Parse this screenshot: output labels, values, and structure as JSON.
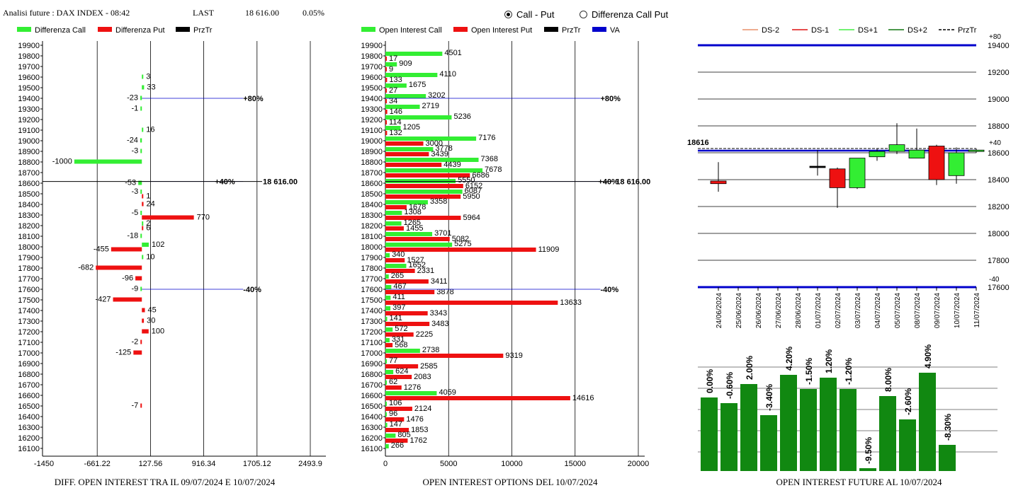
{
  "header": {
    "title": "Analisi future : DAX INDEX - 08:42",
    "last_label": "LAST",
    "last_value": "18 616.00",
    "change": "0.05%"
  },
  "mode_options": [
    {
      "label": "Call - Put",
      "selected": true
    },
    {
      "label": "Differenza Call Put",
      "selected": false
    }
  ],
  "colors": {
    "call": "#33ee33",
    "put": "#ee1111",
    "price": "#000000",
    "va": "#0000cc",
    "bar_dark": "#118811"
  },
  "chart_data": [
    {
      "type": "bar",
      "orientation": "horizontal",
      "title": "DIFF. OPEN INTEREST TRA IL 09/07/2024 E 10/07/2024",
      "legend": [
        "Differenza Call",
        "Differenza Put",
        "PrzTr"
      ],
      "x_ticks": [
        "-1450",
        "-661.22",
        "127.56",
        "916.34",
        "1705.12",
        "2493.9"
      ],
      "xlim": [
        -1450,
        2493.9
      ],
      "strikes": [
        19900,
        19800,
        19700,
        19600,
        19500,
        19400,
        19300,
        19200,
        19100,
        19000,
        18900,
        18800,
        18700,
        18600,
        18500,
        18400,
        18300,
        18200,
        18100,
        18000,
        17900,
        17800,
        17700,
        17600,
        17500,
        17400,
        17300,
        17200,
        17100,
        17000,
        16900,
        16800,
        16700,
        16600,
        16500,
        16400,
        16300,
        16200,
        16100
      ],
      "bars": [
        {
          "strike": 19600,
          "value": 3,
          "type": "call"
        },
        {
          "strike": 19500,
          "value": 33,
          "type": "call"
        },
        {
          "strike": 19400,
          "value": -23,
          "type": "call"
        },
        {
          "strike": 19300,
          "value": -1,
          "type": "call"
        },
        {
          "strike": 19100,
          "value": 16,
          "type": "call"
        },
        {
          "strike": 19000,
          "value": -24,
          "type": "call"
        },
        {
          "strike": 18900,
          "value": -3,
          "type": "call"
        },
        {
          "strike": 18800,
          "value": -1000,
          "type": "call"
        },
        {
          "strike": 18600,
          "value": -53,
          "type": "call"
        },
        {
          "strike": 18500,
          "value": -3,
          "type": "call"
        },
        {
          "strike": 18500,
          "value": 1,
          "type": "put"
        },
        {
          "strike": 18400,
          "value": 24,
          "type": "put"
        },
        {
          "strike": 18300,
          "value": -5,
          "type": "call"
        },
        {
          "strike": 18300,
          "value": 770,
          "type": "put"
        },
        {
          "strike": 18200,
          "value": 2,
          "type": "call"
        },
        {
          "strike": 18200,
          "value": 6,
          "type": "put"
        },
        {
          "strike": 18100,
          "value": -18,
          "type": "call"
        },
        {
          "strike": 18000,
          "value": 102,
          "type": "call"
        },
        {
          "strike": 18000,
          "value": -455,
          "type": "put"
        },
        {
          "strike": 17900,
          "value": 10,
          "type": "call"
        },
        {
          "strike": 17800,
          "value": -682,
          "type": "put"
        },
        {
          "strike": 17700,
          "value": -96,
          "type": "put"
        },
        {
          "strike": 17600,
          "value": -9,
          "type": "call"
        },
        {
          "strike": 17500,
          "value": -427,
          "type": "put"
        },
        {
          "strike": 17400,
          "value": 45,
          "type": "put"
        },
        {
          "strike": 17300,
          "value": 30,
          "type": "put"
        },
        {
          "strike": 17200,
          "value": 100,
          "type": "put"
        },
        {
          "strike": 17100,
          "value": -2,
          "type": "put"
        },
        {
          "strike": 17000,
          "value": -125,
          "type": "put"
        },
        {
          "strike": 16500,
          "value": -7,
          "type": "put"
        }
      ],
      "levels": [
        {
          "strike": 19400,
          "label": "+80%"
        },
        {
          "strike": 18616,
          "label": "+40%"
        },
        {
          "strike": 17600,
          "label": "-40%"
        }
      ],
      "price": {
        "value": 18616,
        "label": "18 616.00"
      }
    },
    {
      "type": "bar",
      "orientation": "horizontal",
      "title": "OPEN INTEREST OPTIONS DEL 10/07/2024",
      "legend": [
        "Open Interest Call",
        "Open Interest Put",
        "PrzTr",
        "VA"
      ],
      "x_ticks": [
        "0",
        "5000",
        "10000",
        "15000",
        "20000"
      ],
      "xlim": [
        0,
        20000
      ],
      "strikes": [
        19900,
        19800,
        19700,
        19600,
        19500,
        19400,
        19300,
        19200,
        19100,
        19000,
        18900,
        18800,
        18700,
        18600,
        18500,
        18400,
        18300,
        18200,
        18100,
        18000,
        17900,
        17800,
        17700,
        17600,
        17500,
        17400,
        17300,
        17200,
        17100,
        17000,
        16900,
        16800,
        16700,
        16600,
        16500,
        16400,
        16300,
        16200,
        16100
      ],
      "rows": [
        {
          "strike": 19800,
          "call": 4501,
          "put": 17
        },
        {
          "strike": 19700,
          "call": 909,
          "put": 9
        },
        {
          "strike": 19600,
          "call": 4110,
          "put": 133
        },
        {
          "strike": 19500,
          "call": 1675,
          "put": 27
        },
        {
          "strike": 19400,
          "call": 3202,
          "put": 34
        },
        {
          "strike": 19300,
          "call": 2719,
          "put": 146
        },
        {
          "strike": 19200,
          "call": 5236,
          "put": 114
        },
        {
          "strike": 19100,
          "call": 1205,
          "put": 132
        },
        {
          "strike": 19000,
          "call": 7176,
          "put": 3000
        },
        {
          "strike": 18900,
          "call": 3778,
          "put": 3439
        },
        {
          "strike": 18800,
          "call": 7368,
          "put": 4439
        },
        {
          "strike": 18700,
          "call": 7678,
          "put": 6686
        },
        {
          "strike": 18600,
          "call": 5550,
          "put": 6152
        },
        {
          "strike": 18500,
          "call": 6087,
          "put": 5950
        },
        {
          "strike": 18400,
          "call": 3358,
          "put": 1678
        },
        {
          "strike": 18300,
          "call": 1308,
          "put": 5964
        },
        {
          "strike": 18200,
          "call": 1265,
          "put": 1455
        },
        {
          "strike": 18100,
          "call": 3701,
          "put": 5082
        },
        {
          "strike": 18000,
          "call": 5275,
          "put": 11909
        },
        {
          "strike": 17900,
          "call": 340,
          "put": 1527
        },
        {
          "strike": 17800,
          "call": 1652,
          "put": 2331
        },
        {
          "strike": 17700,
          "call": 265,
          "put": 3411
        },
        {
          "strike": 17600,
          "call": 467,
          "put": 3878
        },
        {
          "strike": 17500,
          "call": 411,
          "put": 13633
        },
        {
          "strike": 17400,
          "call": 397,
          "put": 3343
        },
        {
          "strike": 17300,
          "call": 141,
          "put": 3483
        },
        {
          "strike": 17200,
          "call": 572,
          "put": 2225
        },
        {
          "strike": 17100,
          "call": 331,
          "put": 568
        },
        {
          "strike": 17000,
          "call": 2738,
          "put": 9319
        },
        {
          "strike": 16900,
          "call": 77,
          "put": 2585
        },
        {
          "strike": 16800,
          "call": 624,
          "put": 2083
        },
        {
          "strike": 16700,
          "call": 62,
          "put": 1276
        },
        {
          "strike": 16600,
          "call": 4059,
          "put": 14616
        },
        {
          "strike": 16500,
          "call": 106,
          "put": 2124
        },
        {
          "strike": 16400,
          "call": 96,
          "put": 1476
        },
        {
          "strike": 16300,
          "call": 147,
          "put": 1853
        },
        {
          "strike": 16200,
          "call": 805,
          "put": 1762
        },
        {
          "strike": 16100,
          "call": 266,
          "put": null
        }
      ],
      "levels": [
        {
          "strike": 19400,
          "label": "+80%"
        },
        {
          "strike": 18616,
          "label": "+40%"
        },
        {
          "strike": 17600,
          "label": "-40%"
        }
      ],
      "price": {
        "value": 18616,
        "label": "18 616.00"
      }
    },
    {
      "type": "candlestick",
      "legend": [
        "DS-2",
        "DS-1",
        "DS+1",
        "DS+2",
        "PrzTr"
      ],
      "y_ticks": [
        "19400",
        "19200",
        "19000",
        "18800",
        "18600",
        "18400",
        "18200",
        "18000",
        "17800",
        "17600"
      ],
      "ylim": [
        17600,
        19400
      ],
      "dates": [
        "24/06/2024",
        "25/06/2024",
        "26/06/2024",
        "27/06/2024",
        "28/06/2024",
        "01/07/2024",
        "02/07/2024",
        "03/07/2024",
        "04/07/2024",
        "05/07/2024",
        "08/07/2024",
        "09/07/2024",
        "10/07/2024",
        "11/07/2024"
      ],
      "candles": [
        {
          "date": "24/06/2024",
          "open": 18390,
          "close": 18370,
          "high": 18530,
          "low": 18310
        },
        {
          "date": "01/07/2024",
          "open": 18500,
          "close": 18500,
          "high": 18620,
          "low": 18430
        },
        {
          "date": "02/07/2024",
          "open": 18480,
          "close": 18340,
          "high": 18490,
          "low": 18190
        },
        {
          "date": "03/07/2024",
          "open": 18340,
          "close": 18560,
          "high": 18560,
          "low": 18330
        },
        {
          "date": "04/07/2024",
          "open": 18570,
          "close": 18610,
          "high": 18630,
          "low": 18540
        },
        {
          "date": "05/07/2024",
          "open": 18610,
          "close": 18660,
          "high": 18820,
          "low": 18590
        },
        {
          "date": "08/07/2024",
          "open": 18560,
          "close": 18620,
          "high": 18780,
          "low": 18560
        },
        {
          "date": "09/07/2024",
          "open": 18650,
          "close": 18400,
          "high": 18660,
          "low": 18360
        },
        {
          "date": "10/07/2024",
          "open": 18430,
          "close": 18600,
          "high": 18640,
          "low": 18370
        },
        {
          "date": "11/07/2024",
          "open": 18616,
          "close": 18620,
          "high": 18630,
          "low": 18600
        }
      ],
      "lines": {
        "upper": {
          "value": 19400,
          "label": "+80"
        },
        "price": {
          "value": 18616,
          "label": "18616",
          "right_label": "+40"
        },
        "lower": {
          "value": 17600,
          "label": "-40"
        }
      }
    },
    {
      "type": "bar",
      "title": "OPEN INTEREST FUTURE AL 10/07/2024",
      "labels": [
        "0.00%",
        "-0.60%",
        "2.00%",
        "-3.40%",
        "4.20%",
        "-1.50%",
        "1.20%",
        "-1.20%",
        "-9.50%",
        "8.00%",
        "-2.60%",
        "4.90%",
        "-8.30%"
      ],
      "values": [
        0.0,
        -0.6,
        2.0,
        -3.4,
        4.2,
        -1.5,
        1.2,
        -1.2,
        -9.5,
        8.0,
        -2.6,
        4.9,
        -8.3
      ],
      "heights": [
        104,
        96,
        123,
        79,
        136,
        116,
        132,
        116,
        4,
        106,
        73,
        139,
        37
      ]
    }
  ]
}
